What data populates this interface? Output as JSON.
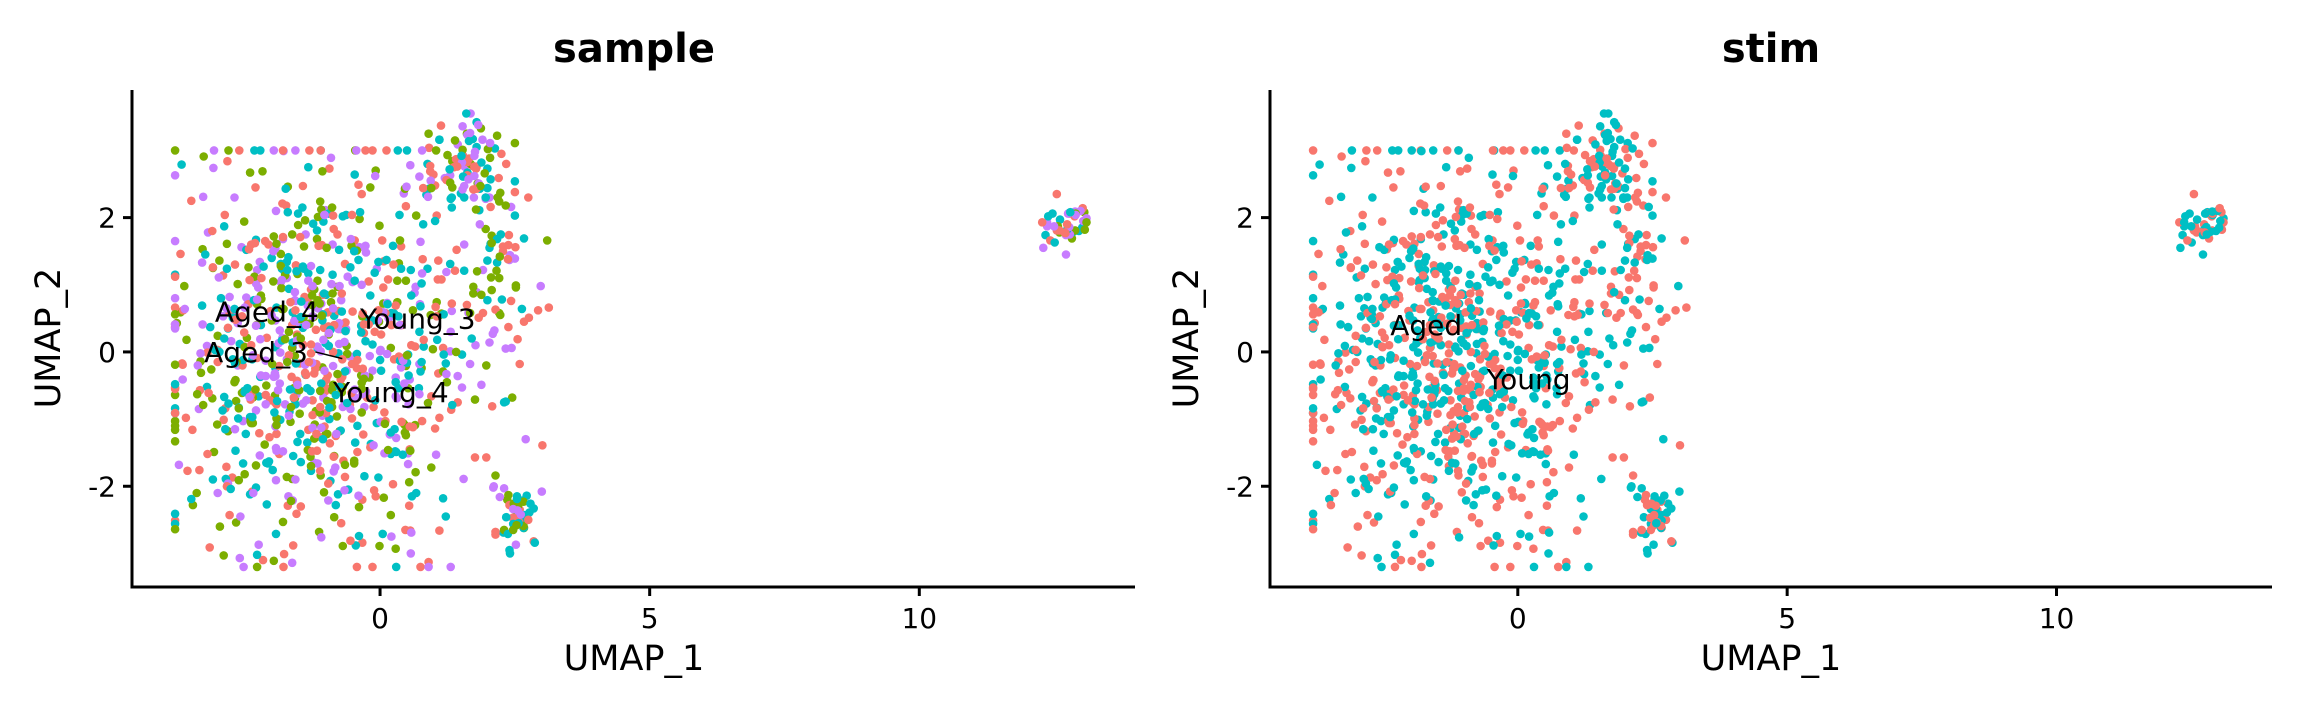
{
  "chart_data": [
    {
      "type": "scatter",
      "title": "sample",
      "xlabel": "UMAP_1",
      "ylabel": "UMAP_2",
      "xlim": [
        -4.6,
        14.0
      ],
      "ylim": [
        -3.5,
        3.9
      ],
      "xticks": [
        0,
        5,
        10
      ],
      "yticks": [
        -2,
        0,
        2
      ],
      "grid": false,
      "legend": "none",
      "series": [
        {
          "name": "Aged_3",
          "color": "#F8766D",
          "values": []
        },
        {
          "name": "Aged_4",
          "color": "#7CAE00",
          "values": []
        },
        {
          "name": "Young_3",
          "color": "#00BFC4",
          "values": []
        },
        {
          "name": "Young_4",
          "color": "#C77CFF",
          "values": []
        }
      ],
      "labels": [
        {
          "text": "Aged_4",
          "x": -2.1,
          "y": 0.6
        },
        {
          "text": "Young_3",
          "x": 0.7,
          "y": 0.5
        },
        {
          "text": "Aged_3",
          "x": -2.3,
          "y": 0.0
        },
        {
          "text": "Young_4",
          "x": 0.2,
          "y": -0.6
        }
      ],
      "leaders": [
        {
          "from": [
            -1.2,
            0.0
          ],
          "to": [
            -0.7,
            -0.1
          ]
        }
      ]
    },
    {
      "type": "scatter",
      "title": "stim",
      "xlabel": "UMAP_1",
      "ylabel": "UMAP_2",
      "xlim": [
        -4.6,
        14.0
      ],
      "ylim": [
        -3.5,
        3.9
      ],
      "xticks": [
        0,
        5,
        10
      ],
      "yticks": [
        -2,
        0,
        2
      ],
      "grid": false,
      "legend": "none",
      "series": [
        {
          "name": "Aged",
          "color": "#F8766D",
          "values": []
        },
        {
          "name": "Young",
          "color": "#00BFC4",
          "values": []
        }
      ],
      "labels": [
        {
          "text": "Aged",
          "x": -1.7,
          "y": 0.4
        },
        {
          "text": "Young",
          "x": 0.2,
          "y": -0.4
        }
      ],
      "leaders": []
    }
  ],
  "clusters": [
    {
      "cx": -1.1,
      "cy": 0.0,
      "sx": 1.4,
      "sy": 1.55,
      "n": 900,
      "xmin": -3.8,
      "xmax": 3.2,
      "ymin": -3.2,
      "ymax": 3.0
    },
    {
      "cx": 1.6,
      "cy": 2.8,
      "sx": 0.45,
      "sy": 0.35,
      "n": 90,
      "xmin": 0.8,
      "xmax": 2.5,
      "ymin": 1.9,
      "ymax": 3.55
    },
    {
      "cx": 2.2,
      "cy": 0.8,
      "sx": 0.45,
      "sy": 0.9,
      "n": 70,
      "xmin": 1.3,
      "xmax": 3.1,
      "ymin": -1.3,
      "ymax": 2.3
    },
    {
      "cx": 2.5,
      "cy": -2.5,
      "sx": 0.22,
      "sy": 0.3,
      "n": 50,
      "xmin": 1.8,
      "xmax": 3.0,
      "ymin": -3.0,
      "ymax": -2.0
    },
    {
      "cx": 12.7,
      "cy": 1.9,
      "sx": 0.25,
      "sy": 0.2,
      "n": 45,
      "xmin": 12.1,
      "xmax": 13.1,
      "ymin": 1.4,
      "ymax": 2.35
    }
  ],
  "colors": {
    "aged3": "#F8766D",
    "aged4": "#7CAE00",
    "young3": "#00BFC4",
    "young4": "#C77CFF"
  }
}
